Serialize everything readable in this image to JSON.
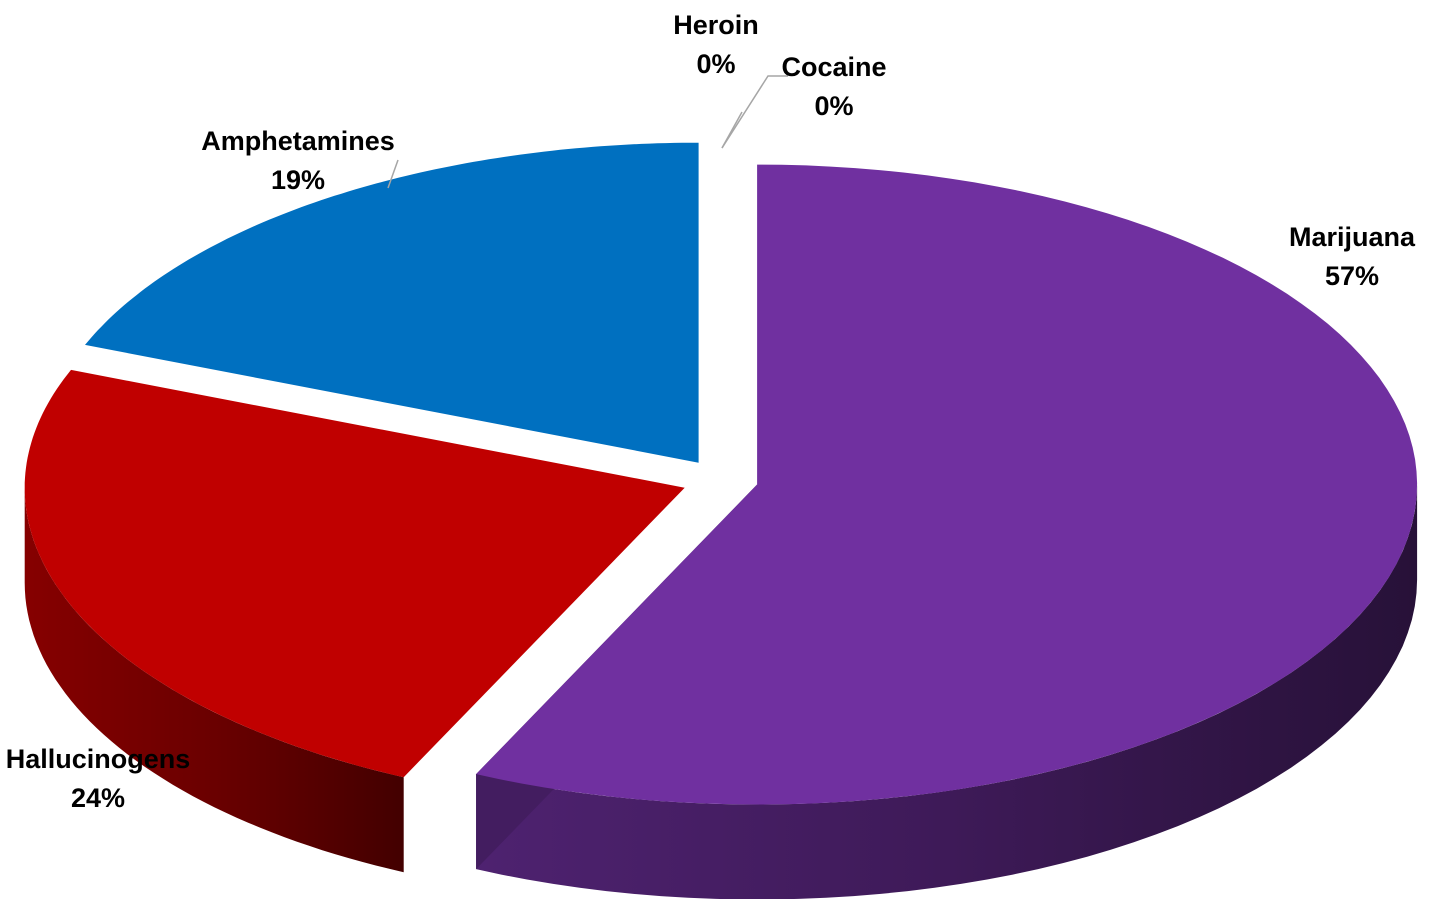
{
  "chart_data": {
    "type": "pie",
    "title": "",
    "categories": [
      "Marijuana",
      "Hallucinogens",
      "Amphetamines",
      "Heroin",
      "Cocaine"
    ],
    "values": [
      57,
      24,
      19,
      0,
      0
    ],
    "labels": [
      {
        "name": "Marijuana",
        "percent": "57%"
      },
      {
        "name": "Hallucinogens",
        "percent": "24%"
      },
      {
        "name": "Amphetamines",
        "percent": "19%"
      },
      {
        "name": "Heroin",
        "percent": "0%"
      },
      {
        "name": "Cocaine",
        "percent": "0%"
      }
    ],
    "colors": {
      "Marijuana": "#7030a0",
      "Hallucinogens": "#c00000",
      "Amphetamines": "#0070c0",
      "Heroin": "#4f81bd",
      "Cocaine": "#f79646"
    },
    "style": "3d-exploded",
    "legend": "none",
    "start_angle_deg": 0,
    "direction": "clockwise"
  }
}
